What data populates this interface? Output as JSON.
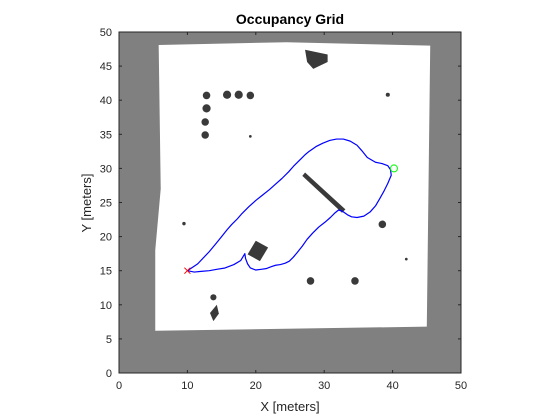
{
  "chart_data": {
    "type": "heatmap",
    "title": "Occupancy Grid",
    "xlabel": "X [meters]",
    "ylabel": "Y [meters]",
    "xlim": [
      0,
      50
    ],
    "ylim": [
      0,
      50
    ],
    "xticks": [
      0,
      10,
      20,
      30,
      40,
      50
    ],
    "yticks": [
      0,
      5,
      10,
      15,
      20,
      25,
      30,
      35,
      40,
      45,
      50
    ],
    "grid": false,
    "map": {
      "unknown_color": "#808080",
      "free_color": "#ffffff",
      "occupied_color": "#3a3a3a",
      "free_region": [
        [
          5.8,
          48.1
        ],
        [
          24.5,
          48.5
        ],
        [
          45.5,
          48.0
        ],
        [
          45.0,
          6.8
        ],
        [
          5.3,
          6.2
        ],
        [
          5.3,
          18.0
        ],
        [
          6.1,
          27.0
        ]
      ],
      "obstacles": [
        {
          "shape": "circle",
          "cx": 12.8,
          "cy": 40.7,
          "r": 0.55
        },
        {
          "shape": "circle",
          "cx": 15.8,
          "cy": 40.8,
          "r": 0.6
        },
        {
          "shape": "circle",
          "cx": 17.5,
          "cy": 40.8,
          "r": 0.6
        },
        {
          "shape": "circle",
          "cx": 19.2,
          "cy": 40.7,
          "r": 0.55
        },
        {
          "shape": "circle",
          "cx": 12.8,
          "cy": 38.8,
          "r": 0.6
        },
        {
          "shape": "circle",
          "cx": 12.6,
          "cy": 36.8,
          "r": 0.55
        },
        {
          "shape": "circle",
          "cx": 12.6,
          "cy": 34.9,
          "r": 0.55
        },
        {
          "shape": "circle",
          "cx": 38.5,
          "cy": 21.8,
          "r": 0.55
        },
        {
          "shape": "circle",
          "cx": 28.0,
          "cy": 13.5,
          "r": 0.55
        },
        {
          "shape": "circle",
          "cx": 34.5,
          "cy": 13.5,
          "r": 0.55
        },
        {
          "shape": "circle",
          "cx": 13.8,
          "cy": 11.1,
          "r": 0.45
        },
        {
          "shape": "circle",
          "cx": 39.3,
          "cy": 40.8,
          "r": 0.3
        },
        {
          "shape": "circle",
          "cx": 19.2,
          "cy": 34.7,
          "r": 0.2
        },
        {
          "shape": "circle",
          "cx": 9.5,
          "cy": 21.9,
          "r": 0.25
        },
        {
          "shape": "circle",
          "cx": 42.0,
          "cy": 16.7,
          "r": 0.2
        },
        {
          "shape": "polygon",
          "points": [
            [
              27.2,
              29.4
            ],
            [
              33.1,
              24.0
            ],
            [
              32.6,
              23.5
            ],
            [
              26.8,
              28.9
            ]
          ]
        },
        {
          "shape": "polygon",
          "points": [
            [
              20.0,
              19.4
            ],
            [
              21.8,
              18.4
            ],
            [
              20.6,
              16.4
            ],
            [
              18.8,
              17.4
            ]
          ]
        },
        {
          "shape": "polygon",
          "points": [
            [
              27.2,
              47.4
            ],
            [
              30.5,
              46.7
            ],
            [
              30.5,
              45.6
            ],
            [
              28.4,
              44.6
            ],
            [
              27.5,
              45.6
            ]
          ]
        },
        {
          "shape": "polygon",
          "points": [
            [
              14.3,
              10.0
            ],
            [
              14.6,
              8.7
            ],
            [
              13.8,
              7.6
            ],
            [
              13.3,
              8.8
            ]
          ]
        }
      ]
    },
    "series": [
      {
        "name": "",
        "color": "#0000ff",
        "x": [
          10.0,
          11.5,
          13.2,
          14.2,
          15.0,
          15.8,
          16.5,
          17.3,
          18.0,
          19.0,
          20.0,
          21.0,
          22.0,
          23.0,
          23.8,
          24.8,
          25.5,
          26.2,
          26.7,
          27.2,
          27.8,
          28.8,
          29.8,
          30.8,
          31.8,
          32.8,
          33.8,
          34.8,
          35.5,
          36.3,
          37.5,
          38.5,
          39.3,
          39.7,
          39.8,
          39.3,
          38.7,
          38.2,
          37.5,
          36.7,
          35.8,
          34.8,
          34.0,
          33.4,
          32.7,
          32.1,
          31.6,
          30.9,
          30.1,
          29.2,
          28.3,
          27.5,
          26.8,
          26.0,
          25.5,
          24.9,
          24.3,
          23.6,
          22.9,
          22.3,
          21.5,
          20.8,
          20.0,
          19.2,
          18.8,
          18.5,
          18.4,
          17.8,
          16.8,
          15.5,
          14.3,
          13.2,
          12.0,
          11.0,
          10.0
        ],
        "y": [
          15.0,
          16.0,
          17.8,
          19.0,
          20.0,
          21.0,
          21.8,
          22.6,
          23.4,
          24.4,
          25.3,
          26.1,
          26.9,
          27.8,
          28.5,
          29.5,
          30.3,
          31.0,
          31.5,
          32.0,
          32.5,
          33.2,
          33.7,
          34.1,
          34.3,
          34.3,
          34.0,
          33.4,
          32.6,
          31.6,
          30.9,
          30.7,
          30.4,
          29.8,
          29.0,
          27.8,
          26.6,
          25.7,
          24.5,
          23.6,
          23.0,
          22.8,
          22.9,
          23.2,
          23.7,
          23.9,
          23.5,
          22.8,
          22.1,
          21.4,
          20.5,
          19.6,
          18.6,
          17.6,
          17.0,
          16.4,
          16.1,
          15.9,
          15.8,
          15.6,
          15.3,
          15.2,
          15.1,
          15.4,
          16.0,
          16.8,
          17.5,
          16.5,
          15.9,
          15.4,
          15.2,
          15.0,
          14.9,
          14.8,
          15.0
        ]
      }
    ],
    "start_marker": {
      "x": 10.0,
      "y": 15.0,
      "symbol": "x",
      "color": "#ff0000"
    },
    "goal_marker": {
      "x": 40.2,
      "y": 30.0,
      "symbol": "o",
      "color": "#00ff00"
    }
  }
}
